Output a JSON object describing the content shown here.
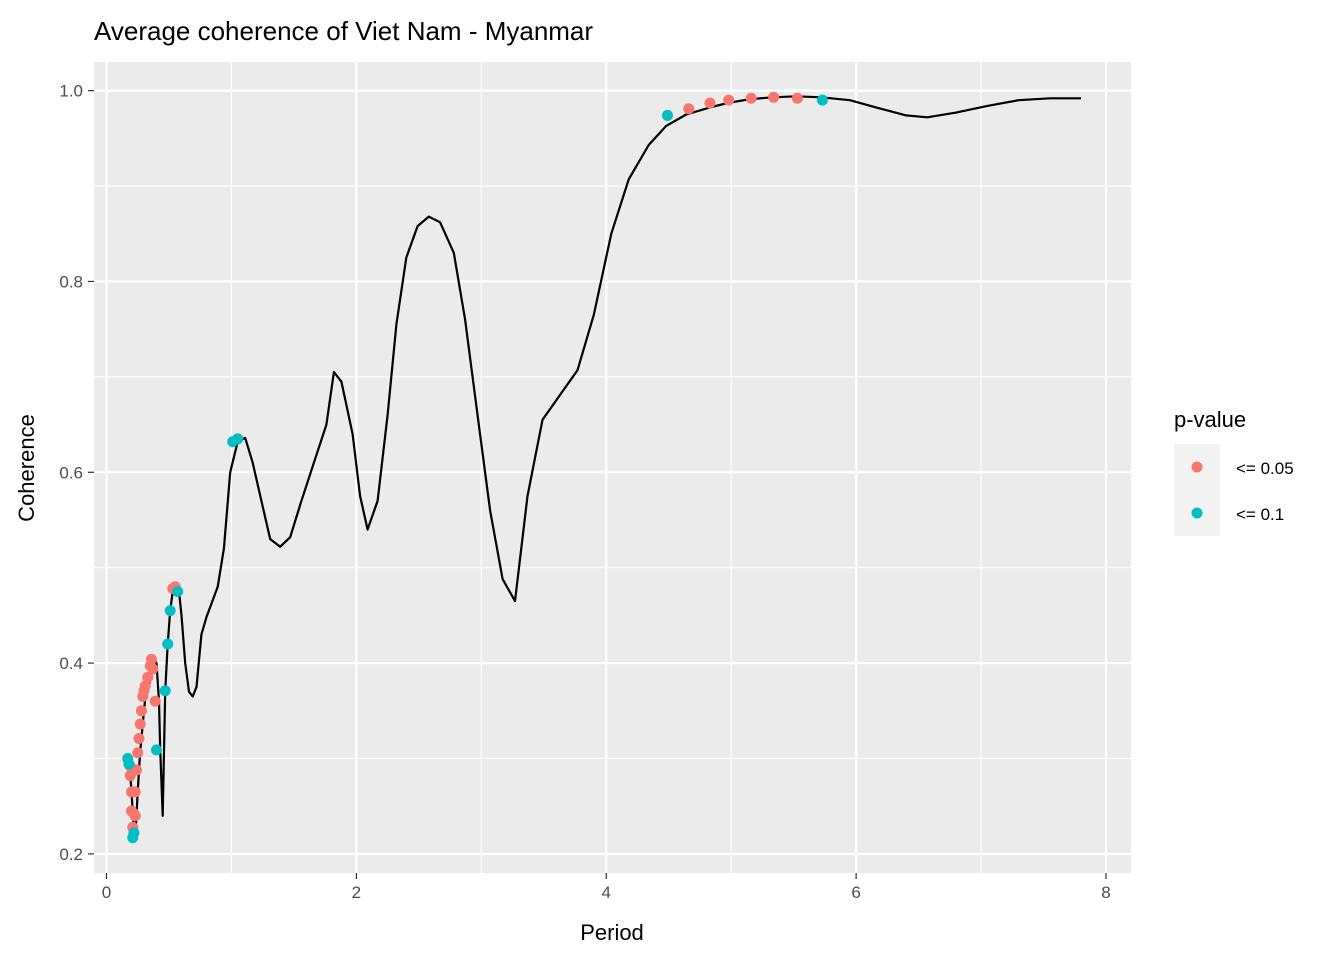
{
  "chart_data": {
    "type": "line",
    "title": "Average coherence of Viet Nam - Myanmar",
    "xlabel": "Period",
    "ylabel": "Coherence",
    "xlim": [
      -0.1,
      8.2
    ],
    "ylim": [
      0.18,
      1.03
    ],
    "x_ticks": [
      0,
      2,
      4,
      6,
      8
    ],
    "x_tick_labels": [
      "0",
      "2",
      "4",
      "6",
      "8"
    ],
    "y_ticks": [
      0.2,
      0.4,
      0.6,
      0.8,
      1.0
    ],
    "y_tick_labels": [
      "0.2",
      "0.4",
      "0.6",
      "0.8",
      "1.0"
    ],
    "x_minor": [
      1,
      3,
      5,
      7
    ],
    "y_minor": [
      0.3,
      0.5,
      0.7,
      0.9
    ],
    "grid": true,
    "line": {
      "color": "#000000",
      "x": [
        0.17,
        0.18,
        0.19,
        0.2,
        0.21,
        0.22,
        0.23,
        0.24,
        0.25,
        0.26,
        0.27,
        0.28,
        0.29,
        0.3,
        0.31,
        0.33,
        0.34,
        0.35,
        0.37,
        0.38,
        0.4,
        0.42,
        0.43,
        0.45,
        0.47,
        0.49,
        0.51,
        0.53,
        0.56,
        0.58,
        0.6,
        0.63,
        0.66,
        0.69,
        0.72,
        0.76,
        0.8,
        0.84,
        0.89,
        0.94,
        0.99,
        1.05,
        1.11,
        1.17,
        1.24,
        1.31,
        1.39,
        1.47,
        1.56,
        1.66,
        1.76,
        1.82,
        1.88,
        1.97,
        2.03,
        2.09,
        2.17,
        2.25,
        2.32,
        2.4,
        2.49,
        2.58,
        2.67,
        2.78,
        2.87,
        2.98,
        3.07,
        3.17,
        3.27,
        3.37,
        3.49,
        3.64,
        3.77,
        3.9,
        4.04,
        4.18,
        4.34,
        4.48,
        4.64,
        4.82,
        4.97,
        5.15,
        5.33,
        5.52,
        5.72,
        5.95,
        6.17,
        6.4,
        6.57,
        6.8,
        7.05,
        7.3,
        7.55,
        7.8
      ],
      "y": [
        0.3,
        0.295,
        0.285,
        0.265,
        0.245,
        0.225,
        0.22,
        0.24,
        0.265,
        0.288,
        0.307,
        0.322,
        0.336,
        0.35,
        0.363,
        0.37,
        0.376,
        0.385,
        0.395,
        0.404,
        0.4,
        0.36,
        0.31,
        0.24,
        0.37,
        0.42,
        0.455,
        0.475,
        0.48,
        0.475,
        0.45,
        0.4,
        0.37,
        0.365,
        0.375,
        0.43,
        0.448,
        0.462,
        0.48,
        0.52,
        0.6,
        0.632,
        0.636,
        0.61,
        0.57,
        0.53,
        0.522,
        0.532,
        0.57,
        0.61,
        0.65,
        0.705,
        0.695,
        0.64,
        0.575,
        0.54,
        0.57,
        0.66,
        0.755,
        0.825,
        0.858,
        0.868,
        0.862,
        0.83,
        0.76,
        0.65,
        0.56,
        0.488,
        0.465,
        0.575,
        0.655,
        0.683,
        0.707,
        0.765,
        0.85,
        0.907,
        0.943,
        0.963,
        0.975,
        0.982,
        0.987,
        0.991,
        0.993,
        0.994,
        0.993,
        0.99,
        0.982,
        0.974,
        0.972,
        0.977,
        0.984,
        0.99,
        0.992,
        0.992
      ]
    },
    "series": [
      {
        "name": "<= 0.05",
        "color": "#F8766D",
        "points": [
          {
            "x": 0.19,
            "y": 0.292
          },
          {
            "x": 0.19,
            "y": 0.282
          },
          {
            "x": 0.2,
            "y": 0.265
          },
          {
            "x": 0.2,
            "y": 0.245
          },
          {
            "x": 0.21,
            "y": 0.228
          },
          {
            "x": 0.22,
            "y": 0.242
          },
          {
            "x": 0.23,
            "y": 0.24
          },
          {
            "x": 0.23,
            "y": 0.265
          },
          {
            "x": 0.24,
            "y": 0.288
          },
          {
            "x": 0.25,
            "y": 0.306
          },
          {
            "x": 0.26,
            "y": 0.321
          },
          {
            "x": 0.27,
            "y": 0.336
          },
          {
            "x": 0.28,
            "y": 0.35
          },
          {
            "x": 0.29,
            "y": 0.365
          },
          {
            "x": 0.3,
            "y": 0.371
          },
          {
            "x": 0.31,
            "y": 0.376
          },
          {
            "x": 0.33,
            "y": 0.385
          },
          {
            "x": 0.35,
            "y": 0.397
          },
          {
            "x": 0.36,
            "y": 0.404
          },
          {
            "x": 0.37,
            "y": 0.394
          },
          {
            "x": 0.39,
            "y": 0.36
          },
          {
            "x": 0.53,
            "y": 0.478
          },
          {
            "x": 0.55,
            "y": 0.48
          },
          {
            "x": 4.66,
            "y": 0.981
          },
          {
            "x": 4.83,
            "y": 0.987
          },
          {
            "x": 4.98,
            "y": 0.99
          },
          {
            "x": 5.16,
            "y": 0.992
          },
          {
            "x": 5.34,
            "y": 0.993
          },
          {
            "x": 5.53,
            "y": 0.992
          }
        ]
      },
      {
        "name": "<= 0.1",
        "color": "#00BFC4",
        "points": [
          {
            "x": 0.17,
            "y": 0.3
          },
          {
            "x": 0.18,
            "y": 0.294
          },
          {
            "x": 0.21,
            "y": 0.217
          },
          {
            "x": 0.22,
            "y": 0.222
          },
          {
            "x": 0.4,
            "y": 0.309
          },
          {
            "x": 0.47,
            "y": 0.371
          },
          {
            "x": 0.49,
            "y": 0.42
          },
          {
            "x": 0.51,
            "y": 0.455
          },
          {
            "x": 0.57,
            "y": 0.475
          },
          {
            "x": 1.01,
            "y": 0.632
          },
          {
            "x": 1.05,
            "y": 0.635
          },
          {
            "x": 4.49,
            "y": 0.974
          },
          {
            "x": 5.73,
            "y": 0.99
          }
        ]
      }
    ],
    "legend": {
      "title": "p-value",
      "position": "right",
      "items": [
        "<= 0.05",
        "<= 0.1"
      ]
    }
  }
}
